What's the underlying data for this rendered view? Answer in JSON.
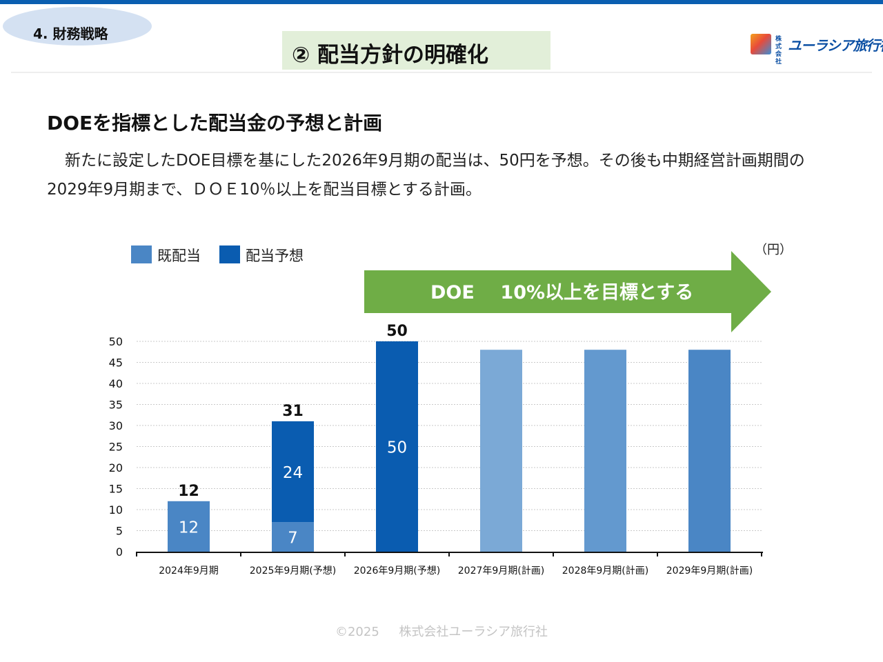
{
  "header": {
    "section_label": "4. 財務戦略",
    "title": "② 配当方針の明確化",
    "logo_small": "株式会社",
    "logo_text": "ユーラシア旅行社"
  },
  "content": {
    "heading": "DOEを指標とした配当金の予想と計画",
    "body": "新たに設定したDOE目標を基にした2026年9月期の配当は、50円を予想。その後も中期経営計画期間の2029年9月期まで、ＤＯＥ10％以上を配当目標とする計画。"
  },
  "banner": {
    "text": "DOE    10%以上を目標とする",
    "color": "#6fad46"
  },
  "chart_data": {
    "type": "bar",
    "stacked": true,
    "unit": "（円）",
    "categories": [
      "2024年9月期",
      "2025年9月期(予想)",
      "2026年9月期(予想)",
      "2027年9月期(計画)",
      "2028年9月期(計画)",
      "2029年9月期(計画)"
    ],
    "series": [
      {
        "name": "既配当",
        "values": [
          12,
          7,
          0,
          null,
          null,
          null
        ],
        "color": "#4a86c5"
      },
      {
        "name": "配当予想",
        "values": [
          0,
          24,
          50,
          null,
          null,
          null
        ],
        "color": "#0a5cb0"
      }
    ],
    "planned_bars": [
      {
        "category": "2027年9月期(計画)",
        "value": 48,
        "color": "#7ba9d6"
      },
      {
        "category": "2028年9月期(計画)",
        "value": 48,
        "color": "#6399cf"
      },
      {
        "category": "2029年9月期(計画)",
        "value": 48,
        "color": "#4a86c5"
      }
    ],
    "segment_labels": [
      {
        "category": "2024年9月期",
        "text": "12"
      },
      {
        "category": "2025年9月期(予想)",
        "text": "7"
      },
      {
        "category": "2025年9月期(予想)",
        "text": "24"
      },
      {
        "category": "2026年9月期(予想)",
        "text": "50"
      }
    ],
    "totals": [
      {
        "category": "2024年9月期",
        "value": 12
      },
      {
        "category": "2025年9月期(予想)",
        "value": 31
      },
      {
        "category": "2026年9月期(予想)",
        "value": 50
      }
    ],
    "ylim": [
      0,
      50
    ],
    "yticks": [
      0,
      5,
      10,
      15,
      20,
      25,
      30,
      35,
      40,
      45,
      50
    ],
    "grid": true,
    "legend_position": "top-left"
  },
  "footer": {
    "text": "©2025     株式会社ユーラシア旅行社"
  }
}
